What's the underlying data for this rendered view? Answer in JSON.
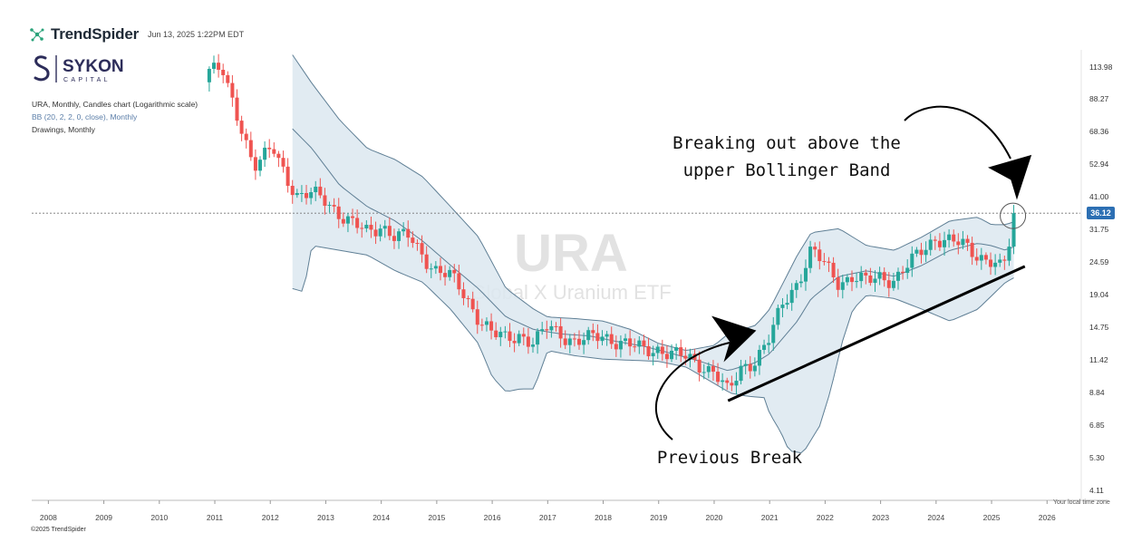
{
  "header": {
    "brand": "TrendSpider",
    "timestamp": "Jun 13, 2025 1:22PM EDT"
  },
  "logo": {
    "name": "SYKON",
    "sub": "CAPITAL"
  },
  "meta": {
    "line1": "URA, Monthly, Candles chart (Logarithmic scale)",
    "line2": "BB (20, 2, 2, 0, close), Monthly",
    "line3": "Drawings, Monthly"
  },
  "watermark": {
    "symbol": "URA",
    "name": "Global X Uranium ETF"
  },
  "annotations": {
    "breakout": [
      "Breaking out above the",
      "upper Bollinger Band"
    ],
    "previous": "Previous Break"
  },
  "footer": {
    "timezone": "Your local time zone",
    "copyright": "©2025 TrendSpider"
  },
  "colors": {
    "up": "#26a69a",
    "down": "#ef5350",
    "band_fill": "#dce8f0",
    "band_line": "#5f7f95",
    "price_tag": "#2c6fb3"
  },
  "chart_data": {
    "type": "candlestick",
    "scale": "log",
    "ylim": [
      3.8,
      130
    ],
    "xlim": [
      2007.7,
      2026.6
    ],
    "y_ticks": [
      "113.98",
      "88.27",
      "68.36",
      "52.94",
      "41.00",
      "31.75",
      "24.59",
      "19.04",
      "14.75",
      "11.42",
      "8.84",
      "6.85",
      "5.30",
      "4.11"
    ],
    "x_ticks": [
      "2008",
      "2009",
      "2010",
      "2011",
      "2012",
      "2013",
      "2014",
      "2015",
      "2016",
      "2017",
      "2018",
      "2019",
      "2020",
      "2021",
      "2022",
      "2023",
      "2024",
      "2025",
      "2026"
    ],
    "last_price": "36.12",
    "last_price_value": 36.12,
    "close_path": [
      [
        2010.9,
        112
      ],
      [
        2011.15,
        108
      ],
      [
        2011.3,
        88
      ],
      [
        2011.5,
        70
      ],
      [
        2011.7,
        52
      ],
      [
        2011.85,
        55
      ],
      [
        2012.05,
        60
      ],
      [
        2012.3,
        48
      ],
      [
        2012.5,
        41
      ],
      [
        2012.75,
        42
      ],
      [
        2013.0,
        40
      ],
      [
        2013.25,
        36
      ],
      [
        2013.5,
        33
      ],
      [
        2013.75,
        31
      ],
      [
        2014.0,
        33
      ],
      [
        2014.25,
        30
      ],
      [
        2014.5,
        30
      ],
      [
        2014.75,
        26
      ],
      [
        2015.0,
        23
      ],
      [
        2015.25,
        22
      ],
      [
        2015.5,
        19
      ],
      [
        2015.75,
        16
      ],
      [
        2016.0,
        14
      ],
      [
        2016.25,
        13.5
      ],
      [
        2016.5,
        14
      ],
      [
        2016.75,
        13
      ],
      [
        2017.0,
        14.8
      ],
      [
        2017.25,
        14
      ],
      [
        2017.5,
        13.2
      ],
      [
        2017.75,
        13.5
      ],
      [
        2018.0,
        13.8
      ],
      [
        2018.25,
        13.3
      ],
      [
        2018.5,
        12.8
      ],
      [
        2018.75,
        12.3
      ],
      [
        2019.0,
        12.5
      ],
      [
        2019.25,
        12
      ],
      [
        2019.5,
        11.6
      ],
      [
        2019.75,
        11
      ],
      [
        2020.0,
        10.5
      ],
      [
        2020.25,
        8.8
      ],
      [
        2020.5,
        10.8
      ],
      [
        2020.75,
        11.5
      ],
      [
        2021.0,
        13.5
      ],
      [
        2021.25,
        18
      ],
      [
        2021.5,
        21
      ],
      [
        2021.75,
        27
      ],
      [
        2022.0,
        24
      ],
      [
        2022.25,
        21
      ],
      [
        2022.5,
        22
      ],
      [
        2022.75,
        21
      ],
      [
        2023.0,
        22
      ],
      [
        2023.25,
        21.5
      ],
      [
        2023.5,
        24
      ],
      [
        2023.75,
        27
      ],
      [
        2024.0,
        30
      ],
      [
        2024.25,
        29
      ],
      [
        2024.5,
        28
      ],
      [
        2024.75,
        26
      ],
      [
        2025.0,
        25
      ],
      [
        2025.2,
        23
      ],
      [
        2025.35,
        30
      ],
      [
        2025.45,
        36.12
      ]
    ],
    "bollinger": {
      "start": 2012.4,
      "upper": [
        [
          2012.4,
          125
        ],
        [
          2012.75,
          100
        ],
        [
          2013.25,
          75
        ],
        [
          2013.75,
          60
        ],
        [
          2014.25,
          55
        ],
        [
          2014.75,
          48
        ],
        [
          2015.25,
          38
        ],
        [
          2015.75,
          30
        ],
        [
          2016.25,
          20
        ],
        [
          2016.75,
          17
        ],
        [
          2017.0,
          16
        ],
        [
          2017.5,
          15.8
        ],
        [
          2018.0,
          15.5
        ],
        [
          2018.5,
          14.5
        ],
        [
          2019.0,
          13
        ],
        [
          2019.5,
          12.3
        ],
        [
          2020.0,
          12.8
        ],
        [
          2020.25,
          14
        ],
        [
          2020.75,
          15
        ],
        [
          2021.0,
          17
        ],
        [
          2021.5,
          26
        ],
        [
          2021.75,
          31
        ],
        [
          2022.25,
          32
        ],
        [
          2022.75,
          28
        ],
        [
          2023.25,
          27
        ],
        [
          2023.75,
          30
        ],
        [
          2024.25,
          34
        ],
        [
          2024.75,
          35
        ],
        [
          2025.0,
          33
        ],
        [
          2025.25,
          33
        ],
        [
          2025.45,
          34
        ]
      ],
      "middle": [
        [
          2012.4,
          70
        ],
        [
          2012.75,
          60
        ],
        [
          2013.25,
          45
        ],
        [
          2013.75,
          38
        ],
        [
          2014.25,
          34
        ],
        [
          2014.75,
          29
        ],
        [
          2015.25,
          24
        ],
        [
          2015.75,
          20
        ],
        [
          2016.25,
          16
        ],
        [
          2016.75,
          14.5
        ],
        [
          2017.25,
          14
        ],
        [
          2017.75,
          13.8
        ],
        [
          2018.25,
          13.2
        ],
        [
          2018.75,
          12.7
        ],
        [
          2019.25,
          12
        ],
        [
          2019.75,
          11.3
        ],
        [
          2020.25,
          10.5
        ],
        [
          2020.75,
          11.2
        ],
        [
          2021.0,
          12
        ],
        [
          2021.5,
          15.5
        ],
        [
          2021.75,
          18.5
        ],
        [
          2022.25,
          22
        ],
        [
          2022.75,
          23
        ],
        [
          2023.25,
          22
        ],
        [
          2023.75,
          24
        ],
        [
          2024.25,
          27
        ],
        [
          2024.75,
          28.5
        ],
        [
          2025.0,
          28
        ],
        [
          2025.25,
          27
        ],
        [
          2025.45,
          28
        ]
      ],
      "lower": [
        [
          2012.4,
          20
        ],
        [
          2012.6,
          19.5
        ],
        [
          2012.75,
          28
        ],
        [
          2013.25,
          27
        ],
        [
          2013.75,
          26
        ],
        [
          2014.25,
          23
        ],
        [
          2014.75,
          21
        ],
        [
          2015.25,
          17
        ],
        [
          2015.75,
          13
        ],
        [
          2016.0,
          10
        ],
        [
          2016.25,
          8.9
        ],
        [
          2016.5,
          9.1
        ],
        [
          2016.75,
          9.1
        ],
        [
          2017.0,
          12.3
        ],
        [
          2017.5,
          11.8
        ],
        [
          2018.0,
          11.5
        ],
        [
          2018.5,
          11.4
        ],
        [
          2019.0,
          11.3
        ],
        [
          2019.5,
          10.8
        ],
        [
          2020.0,
          9.5
        ],
        [
          2020.3,
          8.8
        ],
        [
          2020.6,
          8.6
        ],
        [
          2020.9,
          8.5
        ],
        [
          2021.0,
          7.5
        ],
        [
          2021.2,
          6.5
        ],
        [
          2021.35,
          5.6
        ],
        [
          2021.6,
          5.5
        ],
        [
          2021.9,
          6.8
        ],
        [
          2022.1,
          9
        ],
        [
          2022.3,
          13
        ],
        [
          2022.5,
          17
        ],
        [
          2022.75,
          19
        ],
        [
          2023.25,
          18.5
        ],
        [
          2023.75,
          17
        ],
        [
          2024.25,
          15.5
        ],
        [
          2024.75,
          17
        ],
        [
          2025.25,
          21
        ],
        [
          2025.45,
          22
        ]
      ]
    },
    "trendline": [
      [
        2020.25,
        8.3
      ],
      [
        2025.6,
        23.8
      ]
    ],
    "reference_line": 36.12
  }
}
